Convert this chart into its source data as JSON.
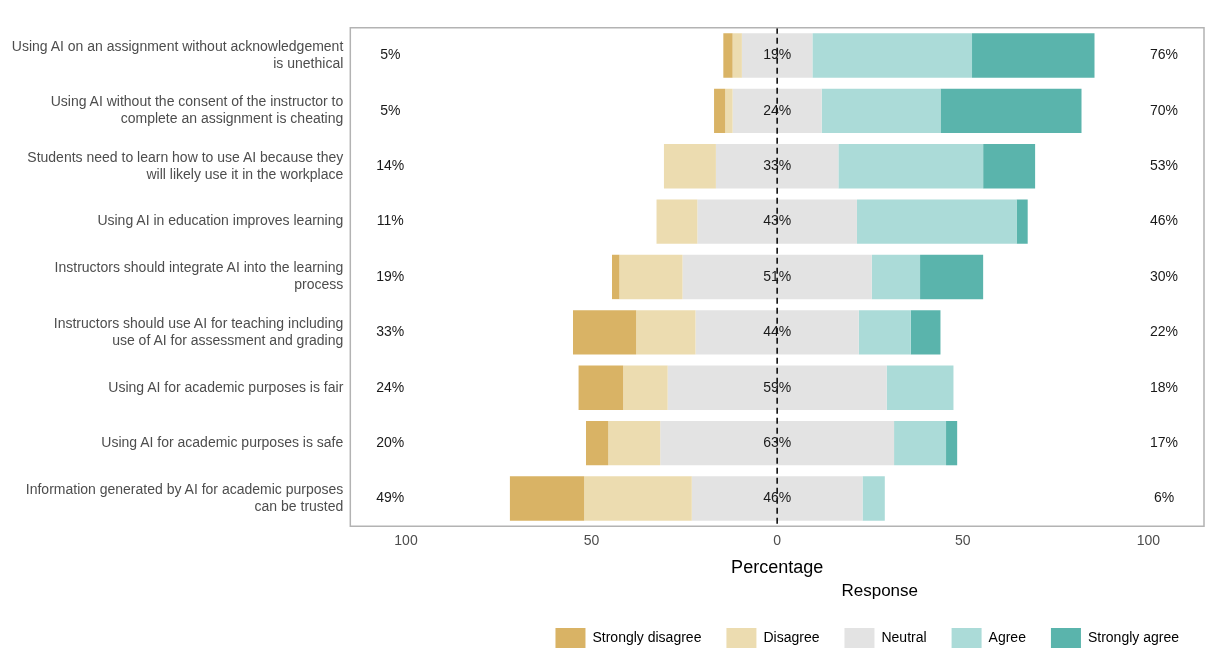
{
  "chart_data": {
    "type": "bar",
    "orientation": "horizontal",
    "xlabel": "Percentage",
    "legend_title": "Response",
    "legend": "bottom",
    "grid": false,
    "categories": [
      "Using AI on an assignment without acknowledgement is unethical",
      "Using AI without the consent of the instructor to complete an assignment is cheating",
      "Students need to learn how to use AI because they will likely use it in the workplace",
      "Using AI in education improves learning",
      "Instructors should integrate AI into the learning process",
      "Instructors should use AI for teaching including use of AI for assessment and grading",
      "Using AI for academic purposes is fair",
      "Using AI for academic purposes is safe",
      "Information generated by AI for academic purposes can be trusted"
    ],
    "xlim": [
      -115,
      115
    ],
    "xticks": [
      {
        "value": -100,
        "label": "100"
      },
      {
        "value": -50,
        "label": "50"
      },
      0,
      50,
      100
    ],
    "series": [
      {
        "name": "Strongly disagree",
        "color": "#d9b365",
        "values": [
          2.5,
          3,
          null,
          null,
          2,
          17,
          12,
          6,
          20
        ],
        "base": [
          -14.5,
          -17,
          null,
          null,
          -44.5,
          -55,
          -53.5,
          -51.5,
          -72
        ]
      },
      {
        "name": "Disagree",
        "color": "#ecdcb0",
        "values": [
          2.5,
          2,
          14,
          11,
          17,
          16,
          12,
          14,
          29
        ],
        "base": [
          -12,
          -14,
          -30.5,
          -32.5,
          -42.5,
          -38,
          -41.5,
          -45.5,
          -52
        ]
      },
      {
        "name": "Neutral",
        "color": "#e3e3e3",
        "values": [
          19,
          24,
          33,
          43,
          51,
          44,
          59,
          63,
          46
        ],
        "base": [
          -9.5,
          -12,
          -16.5,
          -21.5,
          -25.5,
          -22,
          -29.5,
          -31.5,
          -23
        ],
        "value_labels": [
          "19%",
          "24%",
          "33%",
          "43%",
          "51%",
          "44%",
          "59%",
          "63%",
          "46%"
        ]
      },
      {
        "name": "Agree",
        "color": "#abdbd8",
        "values": [
          43,
          32,
          39,
          43,
          13,
          14,
          18,
          14,
          6
        ],
        "base": [
          9.5,
          12,
          16.5,
          21.5,
          25.5,
          22,
          29.5,
          31.5,
          23
        ]
      },
      {
        "name": "Strongly agree",
        "color": "#5ab4ac",
        "values": [
          33,
          38,
          14,
          3,
          17,
          8,
          null,
          3,
          null
        ],
        "base": [
          52.5,
          44,
          55.5,
          64.5,
          38.5,
          36,
          null,
          45.5,
          null
        ]
      }
    ],
    "ref_lines": [
      {
        "axis": "x",
        "value": 0,
        "color": "#000000",
        "line_style": "dashed"
      }
    ],
    "annotations": [
      "5%",
      "5%",
      "14%",
      "11%",
      "19%",
      "33%",
      "24%",
      "20%",
      "49%",
      "76%",
      "70%",
      "53%",
      "46%",
      "30%",
      "22%",
      "18%",
      "17%",
      "6%"
    ]
  }
}
